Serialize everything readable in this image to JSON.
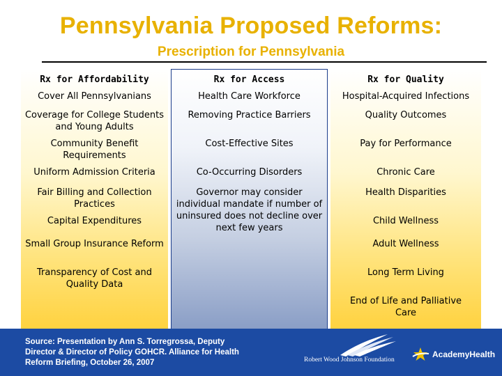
{
  "slide": {
    "title": "Pennsylvania Proposed Reforms:",
    "subtitle": "Prescription for Pennsylvania"
  },
  "columns": [
    {
      "header": "Rx for Affordability",
      "items": [
        "Cover All Pennsylvanians",
        "Coverage for College Students and Young Adults",
        "Community Benefit Requirements",
        "Uniform Admission Criteria",
        "Fair Billing and Collection Practices",
        "Capital Expenditures",
        "Small Group Insurance Reform",
        "Transparency of Cost and Quality Data"
      ]
    },
    {
      "header": "Rx for Access",
      "items": [
        "Health Care Workforce",
        "Removing Practice Barriers",
        "Cost-Effective Sites",
        "Co-Occurring Disorders",
        "Governor may consider individual mandate if number of uninsured does not decline over next few years"
      ]
    },
    {
      "header": "Rx for Quality",
      "items": [
        "Hospital-Acquired Infections",
        "Quality Outcomes",
        "Pay for Performance",
        "Chronic Care",
        "Health Disparities",
        "Child Wellness",
        "Adult Wellness",
        "Long Term Living",
        "End of Life and Palliative Care"
      ]
    }
  ],
  "footer": {
    "source": "Source: Presentation by Ann S. Torregrossa, Deputy Director & Director of Policy GOHCR. Alliance for Health Reform Briefing, October 26, 2007",
    "logo_rwjf": "Robert Wood Johnson Foundation",
    "logo_academyhealth": "AcademyHealth"
  },
  "colors": {
    "title": "#e8b100",
    "footer_bg": "#1c4ba3",
    "gold_gradient_end": "#ffd23f",
    "blue_gradient_end": "#8a9ec6",
    "column_border": "#1a3c8a"
  }
}
